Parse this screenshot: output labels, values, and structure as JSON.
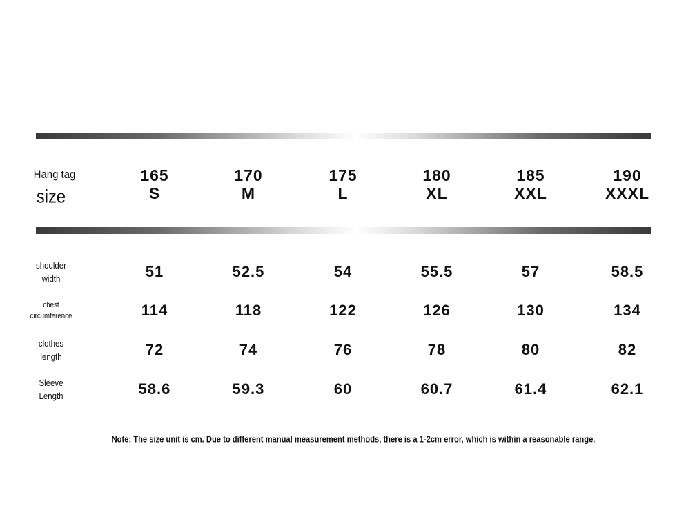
{
  "table": {
    "header_label": [
      "Hang tag",
      "size"
    ],
    "columns": [
      {
        "height": "165",
        "size": "S"
      },
      {
        "height": "170",
        "size": "M"
      },
      {
        "height": "175",
        "size": "L"
      },
      {
        "height": "180",
        "size": "XL"
      },
      {
        "height": "185",
        "size": "XXL"
      },
      {
        "height": "190",
        "size": "XXXL"
      }
    ],
    "rows": [
      {
        "label": [
          "shoulder",
          "width"
        ],
        "values": [
          "51",
          "52.5",
          "54",
          "55.5",
          "57",
          "58.5"
        ]
      },
      {
        "label": [
          "chest",
          "circumference"
        ],
        "values": [
          "114",
          "118",
          "122",
          "126",
          "130",
          "134"
        ]
      },
      {
        "label": [
          "clothes",
          "length"
        ],
        "values": [
          "72",
          "74",
          "76",
          "78",
          "80",
          "82"
        ]
      },
      {
        "label": [
          "Sleeve",
          "Length"
        ],
        "values": [
          "58.6",
          "59.3",
          "60",
          "60.7",
          "61.4",
          "62.1"
        ]
      }
    ]
  },
  "note": "Note: The size unit is cm. Due to different manual measurement methods, there is a 1-2cm error, which is within a reasonable range."
}
